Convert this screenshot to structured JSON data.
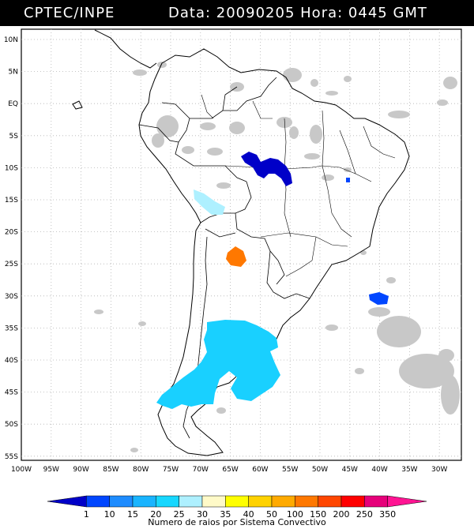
{
  "header": {
    "agency": "CPTEC/INPE",
    "data_label": "Data:",
    "date": "20090205",
    "hora_label": "Hora:",
    "time": "0445 GMT"
  },
  "axes": {
    "lat_labels": [
      "10N",
      "5N",
      "EQ",
      "5S",
      "10S",
      "15S",
      "20S",
      "25S",
      "30S",
      "35S",
      "40S",
      "45S",
      "50S",
      "55S"
    ],
    "lon_labels": [
      "100W",
      "95W",
      "90W",
      "85W",
      "80W",
      "75W",
      "70W",
      "65W",
      "60W",
      "55W",
      "50W",
      "45W",
      "40W",
      "35W",
      "30W"
    ]
  },
  "legend": {
    "values": [
      "1",
      "10",
      "15",
      "20",
      "25",
      "30",
      "35",
      "40",
      "50",
      "100",
      "150",
      "200",
      "250",
      "350"
    ],
    "colors": [
      "#0000c8",
      "#0046ff",
      "#1e8cff",
      "#19b4ff",
      "#17d7ff",
      "#aef0ff",
      "#fffac8",
      "#ffff00",
      "#ffd200",
      "#ffaa00",
      "#ff7800",
      "#ff4600",
      "#ff0000",
      "#e6007a",
      "#ff1493"
    ],
    "title": "Numero de raios por Sistema Convectivo"
  },
  "colors": {
    "cloud": "#c8c8c8",
    "grid": "#b4b4b4",
    "land_outline": "#000000"
  }
}
